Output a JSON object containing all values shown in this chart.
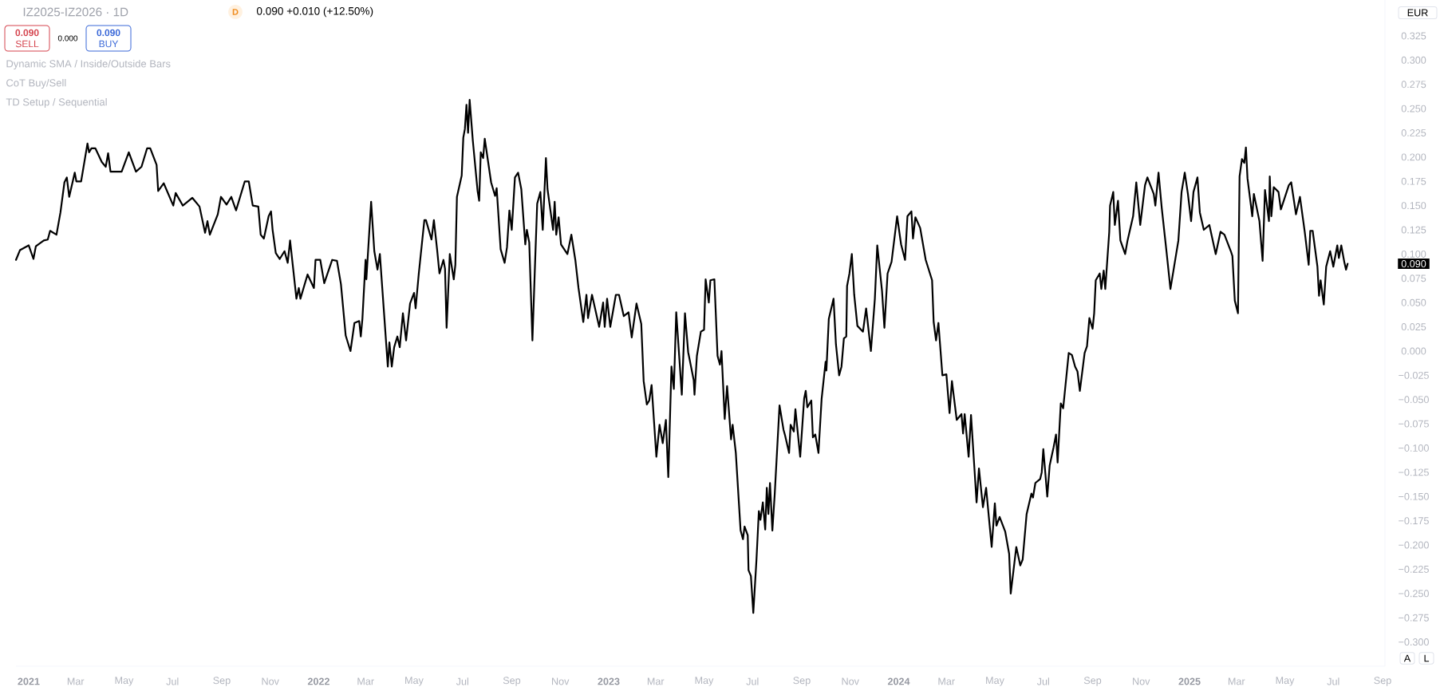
{
  "chart_data": {
    "type": "line",
    "title": "IZ2025-IZ2026 · 1D",
    "subtitle": "0.090 +0.010 (+12.50%)",
    "color": "#000000",
    "x": [
      "2020-12-16",
      "2020-12-21",
      "2021-01-01",
      "2021-01-07",
      "2021-01-10",
      "2021-01-20",
      "2021-01-25",
      "2021-01-28",
      "2021-02-05",
      "2021-02-10",
      "2021-02-15",
      "2021-02-18",
      "2021-02-21",
      "2021-02-28",
      "2021-03-02",
      "2021-03-08",
      "2021-03-16",
      "2021-03-18",
      "2021-03-21",
      "2021-03-26",
      "2021-04-03",
      "2021-04-08",
      "2021-04-11",
      "2021-04-14",
      "2021-04-28",
      "2021-05-07",
      "2021-05-16",
      "2021-05-23",
      "2021-05-30",
      "2021-06-03",
      "2021-06-11",
      "2021-06-13",
      "2021-06-20",
      "2021-07-02",
      "2021-07-05",
      "2021-07-14",
      "2021-07-26",
      "2021-08-04",
      "2021-08-11",
      "2021-08-14",
      "2021-08-17",
      "2021-08-27",
      "2021-08-31",
      "2021-09-07",
      "2021-09-13",
      "2021-09-19",
      "2021-09-30",
      "2021-10-05",
      "2021-10-10",
      "2021-10-17",
      "2021-10-20",
      "2021-10-24",
      "2021-10-30",
      "2021-11-02",
      "2021-11-04",
      "2021-11-08",
      "2021-11-13",
      "2021-11-19",
      "2021-11-23",
      "2021-11-26",
      "2021-12-04",
      "2021-12-07",
      "2021-12-09",
      "2021-12-18",
      "2021-12-26",
      "2021-12-28",
      "2022-01-03",
      "2022-01-08",
      "2022-01-18",
      "2022-01-24",
      "2022-01-29",
      "2022-02-04",
      "2022-02-10",
      "2022-02-15",
      "2022-02-21",
      "2022-02-23",
      "2022-02-25",
      "2022-03-01",
      "2022-03-02",
      "2022-03-08",
      "2022-03-12",
      "2022-03-16",
      "2022-03-19",
      "2022-03-29",
      "2022-03-31",
      "2022-04-03",
      "2022-04-06",
      "2022-04-10",
      "2022-04-13",
      "2022-04-17",
      "2022-04-21",
      "2022-04-26",
      "2022-05-01",
      "2022-05-03",
      "2022-05-07",
      "2022-05-14",
      "2022-05-16",
      "2022-05-23",
      "2022-05-26",
      "2022-05-30",
      "2022-06-02",
      "2022-06-07",
      "2022-06-09",
      "2022-06-11",
      "2022-06-15",
      "2022-06-20",
      "2022-06-22",
      "2022-06-24",
      "2022-06-30",
      "2022-07-02",
      "2022-07-04",
      "2022-07-06",
      "2022-07-08",
      "2022-07-10",
      "2022-07-14",
      "2022-07-20",
      "2022-07-22",
      "2022-07-24",
      "2022-07-27",
      "2022-07-29",
      "2022-08-06",
      "2022-08-11",
      "2022-08-13",
      "2022-08-18",
      "2022-08-23",
      "2022-08-26",
      "2022-08-29",
      "2022-09-01",
      "2022-09-05",
      "2022-09-09",
      "2022-09-13",
      "2022-09-18",
      "2022-09-20",
      "2022-09-23",
      "2022-09-27",
      "2022-09-30",
      "2022-10-03",
      "2022-10-07",
      "2022-10-10",
      "2022-10-14",
      "2022-10-16",
      "2022-10-23",
      "2022-10-25",
      "2022-10-27",
      "2022-10-30",
      "2022-11-02",
      "2022-11-10",
      "2022-11-15",
      "2022-11-20",
      "2022-11-24",
      "2022-11-30",
      "2022-12-04",
      "2022-12-06",
      "2022-12-11",
      "2022-12-20",
      "2022-12-25",
      "2022-12-27",
      "2022-12-30",
      "2023-01-03",
      "2023-01-10",
      "2023-01-14",
      "2023-01-20",
      "2023-01-26",
      "2023-01-30",
      "2023-02-05",
      "2023-02-11",
      "2023-02-14",
      "2023-02-18",
      "2023-02-21",
      "2023-02-24",
      "2023-03-02",
      "2023-03-06",
      "2023-03-10",
      "2023-03-14",
      "2023-03-17",
      "2023-03-21",
      "2023-03-24",
      "2023-03-27",
      "2023-04-03",
      "2023-04-07",
      "2023-04-11",
      "2023-04-18",
      "2023-04-19",
      "2023-04-22",
      "2023-04-27",
      "2023-05-01",
      "2023-05-03",
      "2023-05-07",
      "2023-05-09",
      "2023-05-14",
      "2023-05-18",
      "2023-05-21",
      "2023-05-23",
      "2023-05-27",
      "2023-05-30",
      "2023-06-04",
      "2023-06-06",
      "2023-06-10",
      "2023-06-16",
      "2023-06-19",
      "2023-06-21",
      "2023-06-25",
      "2023-06-26",
      "2023-06-29",
      "2023-07-02",
      "2023-07-06",
      "2023-07-09",
      "2023-07-11",
      "2023-07-14",
      "2023-07-17",
      "2023-07-19",
      "2023-07-21",
      "2023-07-23",
      "2023-07-26",
      "2023-07-29",
      "2023-08-04",
      "2023-08-09",
      "2023-08-11",
      "2023-08-16",
      "2023-08-18",
      "2023-08-22",
      "2023-08-24",
      "2023-08-30",
      "2023-09-04",
      "2023-09-06",
      "2023-09-08",
      "2023-09-13",
      "2023-09-15",
      "2023-09-18",
      "2023-09-22",
      "2023-09-26",
      "2023-10-01",
      "2023-10-02",
      "2023-10-05",
      "2023-10-11",
      "2023-10-14",
      "2023-10-18",
      "2023-10-21",
      "2023-10-24",
      "2023-10-27",
      "2023-10-28",
      "2023-10-31",
      "2023-11-03",
      "2023-11-06",
      "2023-11-10",
      "2023-11-17",
      "2023-11-21",
      "2023-11-27",
      "2023-12-02",
      "2023-12-05",
      "2023-12-11",
      "2023-12-14",
      "2023-12-18",
      "2023-12-23",
      "2023-12-30",
      "2024-01-04",
      "2024-01-09",
      "2024-01-12",
      "2024-01-17",
      "2024-01-19",
      "2024-01-22",
      "2024-01-28",
      "2024-02-04",
      "2024-02-12",
      "2024-02-14",
      "2024-02-17",
      "2024-02-20",
      "2024-02-25",
      "2024-03-01",
      "2024-03-05",
      "2024-03-08",
      "2024-03-14",
      "2024-03-20",
      "2024-03-22",
      "2024-03-24",
      "2024-03-29",
      "2024-04-01",
      "2024-04-06",
      "2024-04-08",
      "2024-04-11",
      "2024-04-16",
      "2024-04-20",
      "2024-04-27",
      "2024-05-01",
      "2024-05-03",
      "2024-05-07",
      "2024-05-14",
      "2024-05-19",
      "2024-05-21",
      "2024-05-28",
      "2024-06-02",
      "2024-06-05",
      "2024-06-10",
      "2024-06-16",
      "2024-06-18",
      "2024-06-21",
      "2024-06-27",
      "2024-06-29",
      "2024-07-01",
      "2024-07-06",
      "2024-07-09",
      "2024-07-14",
      "2024-07-17",
      "2024-07-19",
      "2024-07-23",
      "2024-07-26",
      "2024-08-02",
      "2024-08-06",
      "2024-08-10",
      "2024-08-13",
      "2024-08-16",
      "2024-08-22",
      "2024-08-25",
      "2024-08-28",
      "2024-09-01",
      "2024-09-03",
      "2024-09-05",
      "2024-09-10",
      "2024-09-12",
      "2024-09-15",
      "2024-09-17",
      "2024-09-22",
      "2024-09-23",
      "2024-09-27",
      "2024-09-29",
      "2024-10-03",
      "2024-10-06",
      "2024-10-12",
      "2024-10-15",
      "2024-10-22",
      "2024-10-26",
      "2024-10-31",
      "2024-11-06",
      "2024-11-09",
      "2024-11-17",
      "2024-11-19",
      "2024-11-23",
      "2024-11-27",
      "2024-12-03",
      "2024-12-08",
      "2024-12-12",
      "2024-12-18",
      "2024-12-22",
      "2024-12-26",
      "2024-12-30",
      "2025-01-03",
      "2025-01-06",
      "2025-01-11",
      "2025-01-14",
      "2025-01-19",
      "2025-01-26",
      "2025-02-03",
      "2025-02-09",
      "2025-02-14",
      "2025-02-22",
      "2025-02-24",
      "2025-02-27",
      "2025-03-03",
      "2025-03-05",
      "2025-03-08",
      "2025-03-11",
      "2025-03-13",
      "2025-03-15",
      "2025-03-21",
      "2025-03-23",
      "2025-03-30",
      "2025-04-03",
      "2025-04-06",
      "2025-04-11",
      "2025-04-12",
      "2025-04-14",
      "2025-04-17",
      "2025-04-23",
      "2025-04-26",
      "2025-05-06",
      "2025-05-09",
      "2025-05-15",
      "2025-05-20",
      "2025-05-26",
      "2025-05-31",
      "2025-06-02",
      "2025-06-05",
      "2025-06-11",
      "2025-06-13",
      "2025-06-15",
      "2025-06-19",
      "2025-06-22",
      "2025-06-27",
      "2025-07-01",
      "2025-07-06",
      "2025-07-08",
      "2025-07-11",
      "2025-07-15",
      "2025-07-17",
      "2025-07-19"
    ],
    "values": [
      0.094,
      0.104,
      0.109,
      0.095,
      0.108,
      0.114,
      0.115,
      0.124,
      0.12,
      0.143,
      0.174,
      0.179,
      0.159,
      0.184,
      0.175,
      0.175,
      0.214,
      0.205,
      0.209,
      0.209,
      0.195,
      0.19,
      0.204,
      0.185,
      0.185,
      0.205,
      0.185,
      0.19,
      0.209,
      0.209,
      0.192,
      0.165,
      0.173,
      0.15,
      0.163,
      0.15,
      0.158,
      0.149,
      0.122,
      0.134,
      0.12,
      0.141,
      0.159,
      0.151,
      0.159,
      0.145,
      0.175,
      0.175,
      0.15,
      0.149,
      0.12,
      0.116,
      0.139,
      0.144,
      0.125,
      0.101,
      0.095,
      0.103,
      0.091,
      0.114,
      0.054,
      0.065,
      0.054,
      0.079,
      0.065,
      0.094,
      0.094,
      0.07,
      0.094,
      0.093,
      0.069,
      0.016,
      0.0,
      0.029,
      0.031,
      0.015,
      0.033,
      0.094,
      0.074,
      0.154,
      0.103,
      0.084,
      0.1,
      -0.016,
      0.009,
      -0.016,
      0.004,
      0.015,
      0.004,
      0.039,
      0.011,
      0.049,
      0.06,
      0.044,
      0.08,
      0.135,
      0.135,
      0.115,
      0.135,
      0.105,
      0.08,
      0.094,
      0.085,
      0.024,
      0.1,
      0.074,
      0.089,
      0.159,
      0.181,
      0.22,
      0.229,
      0.254,
      0.225,
      0.259,
      0.217,
      0.165,
      0.155,
      0.205,
      0.199,
      0.219,
      0.174,
      0.16,
      0.168,
      0.105,
      0.091,
      0.107,
      0.145,
      0.125,
      0.179,
      0.184,
      0.167,
      0.11,
      0.125,
      0.112,
      0.011,
      0.083,
      0.152,
      0.164,
      0.125,
      0.199,
      0.167,
      0.125,
      0.154,
      0.12,
      0.138,
      0.11,
      0.1,
      0.12,
      0.094,
      0.065,
      0.03,
      0.058,
      0.034,
      0.058,
      0.025,
      0.05,
      0.025,
      0.054,
      0.025,
      0.058,
      0.058,
      0.036,
      0.04,
      0.014,
      0.049,
      0.028,
      -0.031,
      -0.055,
      -0.051,
      -0.035,
      -0.109,
      -0.076,
      -0.095,
      -0.071,
      -0.13,
      -0.016,
      -0.039,
      0.04,
      -0.045,
      0.039,
      -0.001,
      -0.03,
      -0.045,
      -0.005,
      0.02,
      0.022,
      0.074,
      0.05,
      0.073,
      0.074,
      -0.005,
      -0.014,
      0.0,
      -0.07,
      -0.036,
      -0.091,
      -0.076,
      -0.105,
      -0.185,
      -0.194,
      -0.181,
      -0.19,
      -0.226,
      -0.232,
      -0.27,
      -0.215,
      -0.165,
      -0.174,
      -0.156,
      -0.184,
      -0.141,
      -0.168,
      -0.136,
      -0.185,
      -0.147,
      -0.056,
      -0.081,
      -0.087,
      -0.105,
      -0.076,
      -0.083,
      -0.06,
      -0.109,
      -0.049,
      -0.041,
      -0.058,
      -0.051,
      -0.089,
      -0.086,
      -0.105,
      -0.049,
      -0.011,
      -0.02,
      0.033,
      0.054,
      0.007,
      -0.025,
      -0.016,
      0.013,
      0.015,
      0.067,
      0.08,
      0.1,
      0.058,
      0.026,
      0.02,
      0.044,
      0.0,
      0.054,
      0.109,
      0.062,
      0.024,
      0.08,
      0.092,
      0.139,
      0.11,
      0.094,
      0.139,
      0.144,
      0.116,
      0.138,
      0.127,
      0.094,
      0.073,
      0.03,
      0.011,
      0.029,
      -0.025,
      -0.024,
      -0.064,
      -0.031,
      -0.071,
      -0.065,
      -0.085,
      -0.065,
      -0.109,
      -0.066,
      -0.13,
      -0.156,
      -0.121,
      -0.161,
      -0.141,
      -0.202,
      -0.157,
      -0.18,
      -0.171,
      -0.186,
      -0.209,
      -0.25,
      -0.202,
      -0.221,
      -0.215,
      -0.168,
      -0.147,
      -0.151,
      -0.136,
      -0.132,
      -0.125,
      -0.101,
      -0.15,
      -0.118,
      -0.099,
      -0.086,
      -0.115,
      -0.054,
      -0.059,
      -0.002,
      -0.004,
      -0.016,
      -0.021,
      -0.041,
      -0.002,
      0.005,
      0.034,
      0.023,
      0.039,
      0.073,
      0.08,
      0.064,
      0.083,
      0.064,
      0.123,
      0.15,
      0.164,
      0.13,
      0.155,
      0.114,
      0.1,
      0.114,
      0.139,
      0.174,
      0.13,
      0.171,
      0.179,
      0.162,
      0.15,
      0.184,
      0.148,
      0.103,
      0.064,
      0.084,
      0.114,
      0.164,
      0.184,
      0.162,
      0.134,
      0.164,
      0.179,
      0.143,
      0.125,
      0.13,
      0.1,
      0.123,
      0.12,
      0.103,
      0.098,
      0.052,
      0.039,
      0.18,
      0.198,
      0.194,
      0.21,
      0.178,
      0.139,
      0.162,
      0.134,
      0.093,
      0.166,
      0.134,
      0.18,
      0.139,
      0.169,
      0.164,
      0.146,
      0.171,
      0.174,
      0.141,
      0.159,
      0.123,
      0.089,
      0.124,
      0.124,
      0.087,
      0.057,
      0.073,
      0.048,
      0.087,
      0.103,
      0.087,
      0.109,
      0.096,
      0.109,
      0.091,
      0.084,
      0.09
    ],
    "xlim": [
      "2020-12-16",
      "2025-09-04"
    ],
    "ylim": [
      -0.325,
      0.362
    ],
    "xticks": [
      {
        "value": "2021-01-01",
        "label": "2021"
      },
      {
        "value": "2021-03-01",
        "label": "Mar"
      },
      {
        "value": "2021-05-01",
        "label": "May"
      },
      {
        "value": "2021-07-01",
        "label": "Jul"
      },
      {
        "value": "2021-09-01",
        "label": "Sep"
      },
      {
        "value": "2021-11-01",
        "label": "Nov"
      },
      {
        "value": "2022-01-01",
        "label": "2022"
      },
      {
        "value": "2022-03-01",
        "label": "Mar"
      },
      {
        "value": "2022-05-01",
        "label": "May"
      },
      {
        "value": "2022-07-01",
        "label": "Jul"
      },
      {
        "value": "2022-09-01",
        "label": "Sep"
      },
      {
        "value": "2022-11-01",
        "label": "Nov"
      },
      {
        "value": "2023-01-01",
        "label": "2023"
      },
      {
        "value": "2023-03-01",
        "label": "Mar"
      },
      {
        "value": "2023-05-01",
        "label": "May"
      },
      {
        "value": "2023-07-01",
        "label": "Jul"
      },
      {
        "value": "2023-09-01",
        "label": "Sep"
      },
      {
        "value": "2023-11-01",
        "label": "Nov"
      },
      {
        "value": "2024-01-01",
        "label": "2024"
      },
      {
        "value": "2024-03-01",
        "label": "Mar"
      },
      {
        "value": "2024-05-01",
        "label": "May"
      },
      {
        "value": "2024-07-01",
        "label": "Jul"
      },
      {
        "value": "2024-09-01",
        "label": "Sep"
      },
      {
        "value": "2024-11-01",
        "label": "Nov"
      },
      {
        "value": "2025-01-01",
        "label": "2025"
      },
      {
        "value": "2025-03-01",
        "label": "Mar"
      },
      {
        "value": "2025-05-01",
        "label": "May"
      },
      {
        "value": "2025-07-01",
        "label": "Jul"
      },
      {
        "value": "2025-09-01",
        "label": "Sep"
      }
    ],
    "yticks": [
      {
        "value": -0.3,
        "label": "−0.300"
      },
      {
        "value": -0.275,
        "label": "−0.275"
      },
      {
        "value": -0.25,
        "label": "−0.250"
      },
      {
        "value": -0.225,
        "label": "−0.225"
      },
      {
        "value": -0.2,
        "label": "−0.200"
      },
      {
        "value": -0.175,
        "label": "−0.175"
      },
      {
        "value": -0.15,
        "label": "−0.150"
      },
      {
        "value": -0.125,
        "label": "−0.125"
      },
      {
        "value": -0.1,
        "label": "−0.100"
      },
      {
        "value": -0.075,
        "label": "−0.075"
      },
      {
        "value": -0.05,
        "label": "−0.050"
      },
      {
        "value": -0.025,
        "label": "−0.025"
      },
      {
        "value": 0,
        "label": "0.000"
      },
      {
        "value": 0.025,
        "label": "0.025"
      },
      {
        "value": 0.05,
        "label": "0.050"
      },
      {
        "value": 0.075,
        "label": "0.075"
      },
      {
        "value": 0.1,
        "label": "0.100"
      },
      {
        "value": 0.125,
        "label": "0.125"
      },
      {
        "value": 0.15,
        "label": "0.150"
      },
      {
        "value": 0.175,
        "label": "0.175"
      },
      {
        "value": 0.2,
        "label": "0.200"
      },
      {
        "value": 0.225,
        "label": "0.225"
      },
      {
        "value": 0.25,
        "label": "0.250"
      },
      {
        "value": 0.275,
        "label": "0.275"
      },
      {
        "value": 0.3,
        "label": "0.300"
      },
      {
        "value": 0.325,
        "label": "0.325"
      }
    ],
    "annotations": [
      "D",
      "0.090",
      "SELL",
      "0.000",
      "0.090",
      "BUY",
      "Dynamic SMA / Inside/Outside Bars",
      "CoT Buy/Sell",
      "TD Setup / Sequential",
      "EUR",
      "A",
      "L",
      "0.090"
    ]
  }
}
